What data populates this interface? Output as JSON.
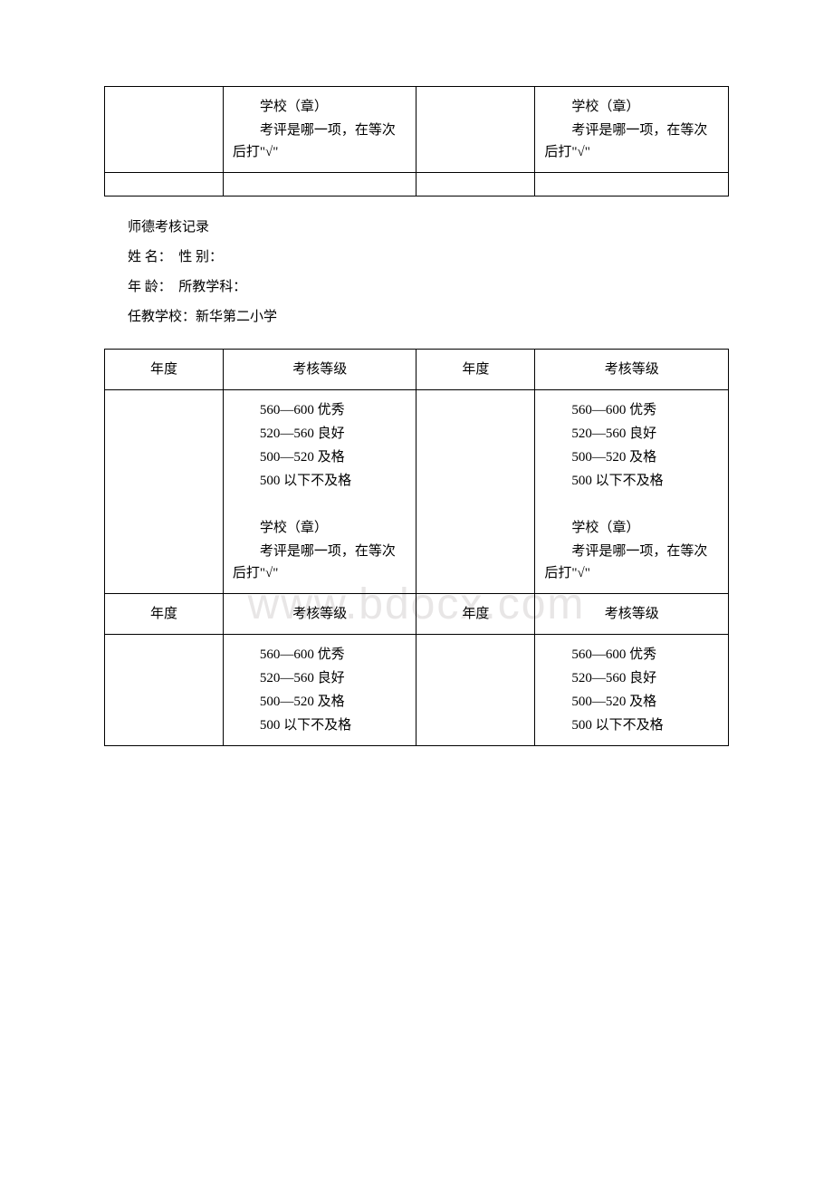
{
  "watermark": "www.bdocx.com",
  "table1": {
    "school_seal": "学校（章）",
    "note": "考评是哪一项，在等次后打\"√\""
  },
  "info": {
    "title": "师德考核记录",
    "name_label": "姓 名：",
    "gender_label": "性 别：",
    "age_label": "年 龄：",
    "subject_label": "所教学科：",
    "school_label": "任教学校：",
    "school_value": "新华第二小学"
  },
  "headers": {
    "year": "年度",
    "grade": "考核等级"
  },
  "grades": {
    "excellent": "560—600 优秀",
    "good": "520—560 良好",
    "pass": "500—520 及格",
    "fail": "500 以下不及格"
  },
  "school_seal": "学校（章）",
  "note": "考评是哪一项，在等次后打\"√\""
}
